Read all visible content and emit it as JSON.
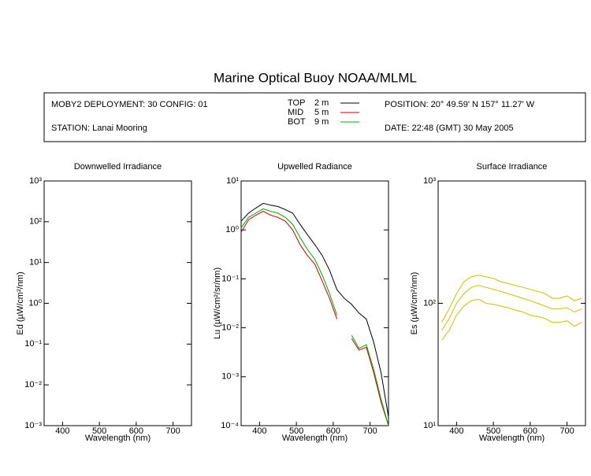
{
  "title": "Marine Optical Buoy NOAA/MLML",
  "header": {
    "deployment": "MOBY2 DEPLOYMENT: 30 CONFIG: 01",
    "station": "STATION: Lanai Mooring",
    "position": "POSITION: 20° 49.59' N   157° 11.27' W",
    "date": "DATE: 22:48 (GMT) 30 May 2005"
  },
  "chart_data": [
    {
      "type": "line",
      "title": "Downwelled Irradiance",
      "x_label": "Wavelength (nm)",
      "y_label": "Ed  (µW/cm²/nm)",
      "log_y": true,
      "xlim": [
        350,
        750
      ],
      "xticks": [
        400,
        500,
        600,
        700
      ],
      "ylim": [
        0.001,
        1000
      ],
      "yticks": [
        {
          "value": 0.001,
          "label": "10⁻³"
        },
        {
          "value": 0.01,
          "label": "10⁻²"
        },
        {
          "value": 0.1,
          "label": "10⁻¹"
        },
        {
          "value": 1,
          "label": "10⁰"
        },
        {
          "value": 10,
          "label": "10¹"
        },
        {
          "value": 100,
          "label": "10²"
        },
        {
          "value": 1000,
          "label": "10³"
        }
      ],
      "x": [],
      "series": []
    },
    {
      "type": "line",
      "title": "Upwelled Radiance",
      "x_label": "Wavelength (nm)",
      "y_label": "Lu  (µW/cm²/sr/nm)",
      "log_y": true,
      "xlim": [
        350,
        750
      ],
      "xticks": [
        400,
        500,
        600,
        700
      ],
      "ylim": [
        0.0001,
        10
      ],
      "yticks": [
        {
          "value": 0.0001,
          "label": "10⁻⁴"
        },
        {
          "value": 0.001,
          "label": "10⁻³"
        },
        {
          "value": 0.01,
          "label": "10⁻²"
        },
        {
          "value": 0.1,
          "label": "10⁻¹"
        },
        {
          "value": 1,
          "label": "10⁰"
        },
        {
          "value": 10,
          "label": "10¹"
        }
      ],
      "x": [
        350,
        370,
        390,
        410,
        430,
        450,
        470,
        490,
        510,
        530,
        550,
        570,
        590,
        610,
        630,
        650,
        670,
        690,
        710,
        730,
        750
      ],
      "series": [
        {
          "name": "TOP",
          "depth": "2 m",
          "color": "#000000",
          "values": [
            1.5,
            2.2,
            2.8,
            3.5,
            3.2,
            3.0,
            2.6,
            2.2,
            1.3,
            0.8,
            0.5,
            0.3,
            0.15,
            0.06,
            0.04,
            0.03,
            0.02,
            0.015,
            0.005,
            0.0012,
            0.00015
          ]
        },
        {
          "name": "MID",
          "depth": "5 m",
          "color": "#cc0000",
          "values": [
            0.9,
            1.6,
            2.0,
            2.4,
            2.0,
            1.8,
            1.5,
            1.0,
            0.5,
            0.3,
            0.2,
            0.09,
            0.04,
            0.015,
            null,
            0.006,
            0.0035,
            0.004,
            0.0012,
            0.0003,
            0.0001
          ]
        },
        {
          "name": "BOT",
          "depth": "9 m",
          "color": "#00aa00",
          "values": [
            1.1,
            1.8,
            2.2,
            2.7,
            2.4,
            2.2,
            1.8,
            1.3,
            0.7,
            0.4,
            0.25,
            0.12,
            0.05,
            0.018,
            null,
            0.007,
            0.0038,
            0.0045,
            0.0014,
            0.00035,
            0.0001
          ]
        }
      ]
    },
    {
      "type": "line",
      "title": "Surface Irradiance",
      "x_label": "Wavelength (nm)",
      "y_label": "Es  (µW/cm²/nm)",
      "log_y": true,
      "xlim": [
        350,
        750
      ],
      "xticks": [
        400,
        500,
        600,
        700
      ],
      "ylim": [
        10,
        1000
      ],
      "yticks": [
        {
          "value": 10,
          "label": "10¹"
        },
        {
          "value": 100,
          "label": "10²"
        },
        {
          "value": 1000,
          "label": "10³"
        }
      ],
      "x": [
        360,
        380,
        400,
        420,
        440,
        460,
        480,
        500,
        520,
        540,
        560,
        580,
        600,
        620,
        640,
        660,
        680,
        700,
        720,
        740
      ],
      "series": [
        {
          "color": "#c8c000",
          "values": [
            70,
            90,
            120,
            150,
            165,
            170,
            165,
            160,
            150,
            145,
            140,
            135,
            130,
            125,
            120,
            110,
            110,
            115,
            105,
            110
          ]
        },
        {
          "color": "#c8c000",
          "values": [
            60,
            75,
            100,
            120,
            135,
            140,
            135,
            130,
            125,
            120,
            115,
            110,
            105,
            100,
            95,
            90,
            90,
            92,
            85,
            90
          ]
        },
        {
          "color": "#c8c000",
          "values": [
            50,
            60,
            80,
            95,
            105,
            108,
            100,
            98,
            95,
            92,
            88,
            85,
            80,
            78,
            75,
            70,
            70,
            72,
            65,
            70
          ]
        }
      ]
    }
  ]
}
